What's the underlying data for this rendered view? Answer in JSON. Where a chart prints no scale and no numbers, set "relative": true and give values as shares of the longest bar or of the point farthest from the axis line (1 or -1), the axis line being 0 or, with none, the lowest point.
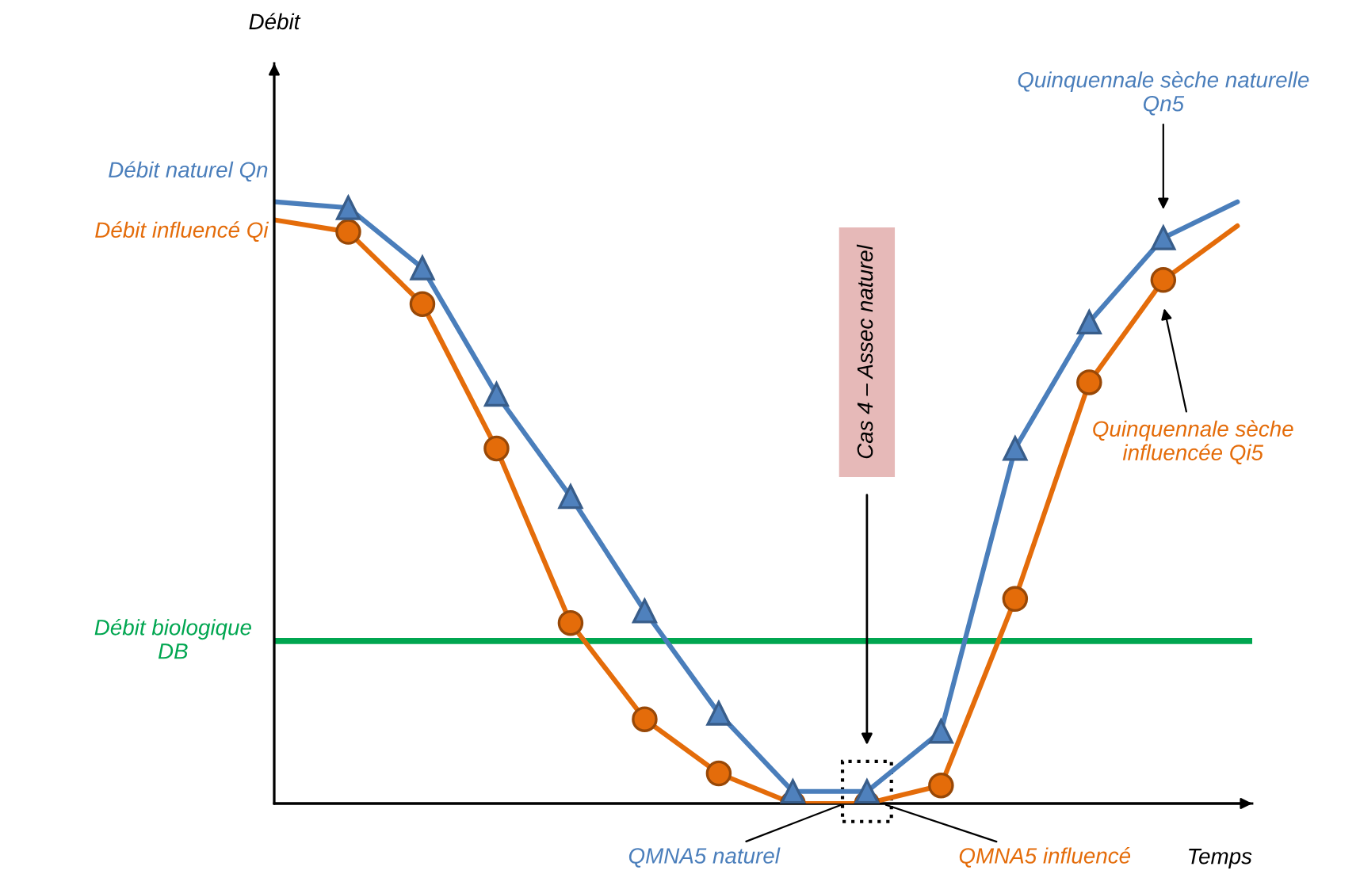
{
  "chart_data": {
    "type": "line",
    "relative": true,
    "xlabel": "Temps",
    "categories": [
      null,
      null,
      null,
      null,
      null,
      null,
      null,
      null,
      null,
      null,
      null,
      null,
      null,
      null
    ],
    "series": [
      {
        "name": "Débit naturel Qn",
        "color": "#4a7ebb",
        "marker": "triangle",
        "values": [
          null,
          0.99,
          0.89,
          0.68,
          0.51,
          0.32,
          0.15,
          0.02,
          0.02,
          0.12,
          0.59,
          0.8,
          0.94,
          null
        ]
      },
      {
        "name": "Débit influencé Qi",
        "color": "#e46c0a",
        "marker": "circle",
        "values": [
          null,
          0.95,
          0.83,
          0.59,
          0.3,
          0.14,
          0.05,
          0.0,
          0.0,
          0.03,
          0.34,
          0.7,
          0.87,
          null
        ]
      },
      {
        "color": "#4a7ebb",
        "marker": "none",
        "values": [
          1.0,
          0.99,
          null,
          null,
          null,
          null,
          null,
          null,
          null,
          null,
          null,
          null,
          null,
          null
        ]
      },
      {
        "color": "#4a7ebb",
        "marker": "none",
        "values": [
          null,
          null,
          null,
          null,
          null,
          null,
          null,
          null,
          null,
          null,
          null,
          null,
          0.94,
          1.0
        ]
      },
      {
        "color": "#e46c0a",
        "marker": "none",
        "values": [
          0.97,
          0.95,
          null,
          null,
          null,
          null,
          null,
          null,
          null,
          null,
          null,
          null,
          null,
          null
        ]
      },
      {
        "color": "#e46c0a",
        "values": [
          null,
          null,
          null,
          null,
          null,
          null,
          null,
          null,
          null,
          null,
          null,
          null,
          0.87,
          0.96
        ]
      }
    ],
    "ref_lines": [
      {
        "axis": "y",
        "value": 0.27,
        "label": "Débit biologique\nDB",
        "color": "#00a650",
        "line_style": "solid"
      }
    ],
    "annotations": [
      "Cas 4 – Assec naturel",
      "Quinquennale sèche naturelle\nQn5",
      "Quinquennale sèche\ninfluencée Qi5",
      "QMNA5 naturel",
      "QMNA5 influencé",
      "Débit"
    ]
  }
}
